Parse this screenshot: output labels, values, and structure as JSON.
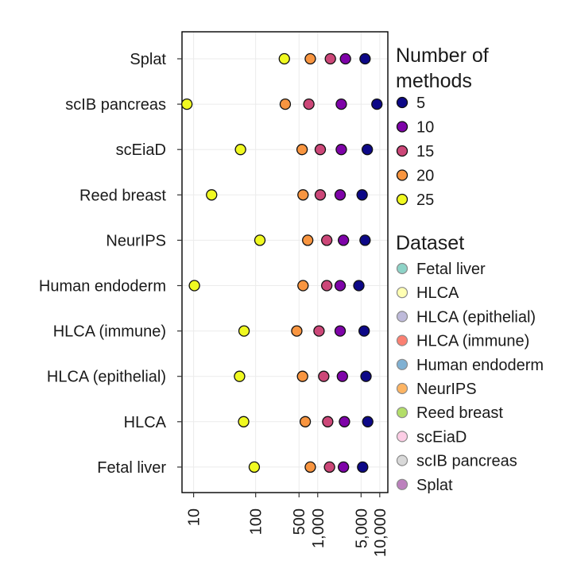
{
  "chart_data": {
    "type": "scatter",
    "x_scale": "log",
    "xlim": [
      6.5,
      13500
    ],
    "x_ticks": [
      {
        "value": 10,
        "label": "10"
      },
      {
        "value": 100,
        "label": "100"
      },
      {
        "value": 500,
        "label": "500"
      },
      {
        "value": 1000,
        "label": "1,000"
      },
      {
        "value": 5000,
        "label": "5,000"
      },
      {
        "value": 10000,
        "label": "10,000"
      }
    ],
    "categories": [
      "Splat",
      "scIB pancreas",
      "scEiaD",
      "Reed breast",
      "NeurIPS",
      "Human endoderm",
      "HLCA (immune)",
      "HLCA (epithelial)",
      "HLCA",
      "Fetal liver"
    ],
    "grid": true,
    "colors": {
      "5": "#0d0887",
      "10": "#7e03a8",
      "15": "#cc4778",
      "20": "#f89540",
      "25": "#f0f921"
    },
    "series": [
      {
        "name": "5",
        "values": [
          5800,
          9000,
          6300,
          5200,
          5800,
          4600,
          5600,
          6000,
          6400,
          5300
        ]
      },
      {
        "name": "10",
        "values": [
          2800,
          2400,
          2400,
          2300,
          2600,
          2300,
          2300,
          2500,
          2700,
          2600
        ]
      },
      {
        "name": "15",
        "values": [
          1600,
          720,
          1100,
          1100,
          1400,
          1400,
          1050,
          1250,
          1450,
          1550
        ]
      },
      {
        "name": "20",
        "values": [
          760,
          300,
          560,
          580,
          690,
          580,
          460,
          570,
          630,
          760
        ]
      },
      {
        "name": "25",
        "values": [
          290,
          7.8,
          57,
          19.5,
          117,
          10.3,
          65,
          55,
          64,
          95
        ]
      }
    ],
    "legend": {
      "position": "right",
      "methods_title": "Number of methods",
      "methods_title_lines": [
        "Number of",
        "methods"
      ],
      "methods_entries": [
        "5",
        "10",
        "15",
        "20",
        "25"
      ],
      "dataset_title": "Dataset",
      "dataset_entries": [
        {
          "label": "Fetal liver",
          "color": "#8dd3c7"
        },
        {
          "label": "HLCA",
          "color": "#ffffb3"
        },
        {
          "label": "HLCA (epithelial)",
          "color": "#bebada"
        },
        {
          "label": "HLCA (immune)",
          "color": "#fb8072"
        },
        {
          "label": "Human endoderm",
          "color": "#80b1d3"
        },
        {
          "label": "NeurIPS",
          "color": "#fdb462"
        },
        {
          "label": "Reed breast",
          "color": "#b3de69"
        },
        {
          "label": "scEiaD",
          "color": "#fccde5"
        },
        {
          "label": "scIB pancreas",
          "color": "#d9d9d9"
        },
        {
          "label": "Splat",
          "color": "#bc80bd"
        }
      ]
    }
  }
}
